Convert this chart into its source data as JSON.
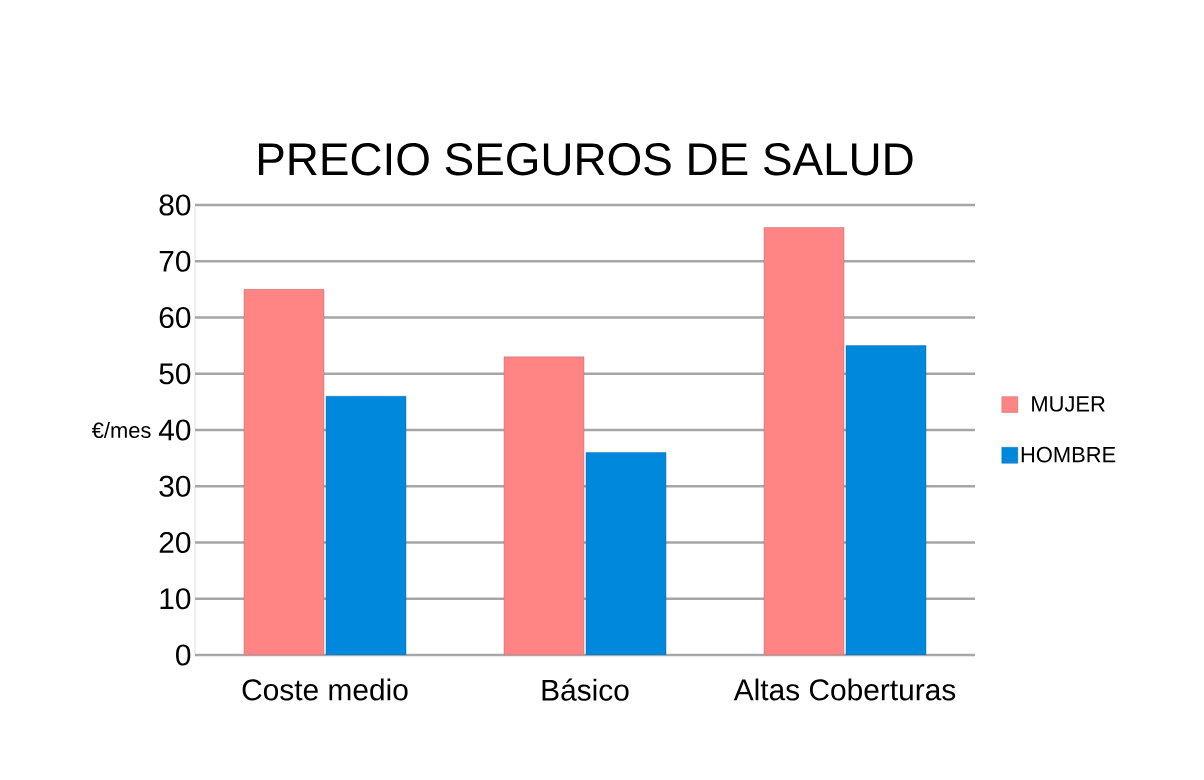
{
  "chart_data": {
    "type": "bar",
    "title": "PRECIO SEGUROS DE SALUD",
    "ylabel": "€/mes",
    "categories": [
      "Coste medio",
      "Básico",
      "Altas Coberturas"
    ],
    "series": [
      {
        "name": "MUJER",
        "color": "#ff8585",
        "values": [
          65,
          53,
          76
        ]
      },
      {
        "name": "HOMBRE",
        "color": "#0088dd",
        "values": [
          46,
          36,
          55
        ]
      }
    ],
    "ylim": [
      0,
      80
    ],
    "yticks": [
      0,
      10,
      20,
      30,
      40,
      50,
      60,
      70,
      80
    ],
    "grid": "y",
    "legend": "right"
  }
}
